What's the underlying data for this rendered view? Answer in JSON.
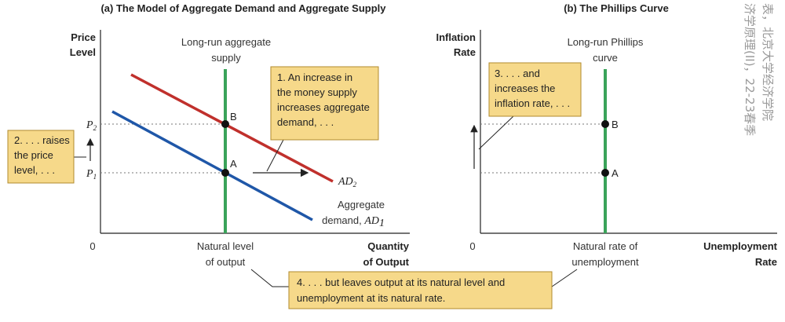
{
  "panel_a": {
    "title": "(a) The Model of Aggregate Demand and Aggregate Supply",
    "y_label_1": "Price",
    "y_label_2": "Level",
    "x_label_1": "Quantity",
    "x_label_2": "of Output",
    "origin": "0",
    "lras_label_1": "Long-run aggregate",
    "lras_label_2": "supply",
    "natural_level_1": "Natural level",
    "natural_level_2": "of output",
    "p1_main": "P",
    "p1_sub": "1",
    "p2_main": "P",
    "p2_sub": "2",
    "point_a": "A",
    "point_b": "B",
    "ad2_main": "AD",
    "ad2_sub": "2",
    "ad1_line1": "Aggregate",
    "ad1_line2_prefix": "demand, ",
    "ad1_main": "AD",
    "ad1_sub": "1",
    "colors": {
      "ad2": "#c0302c",
      "ad1": "#1f57a8",
      "long_run": "#3aa35a"
    }
  },
  "panel_b": {
    "title": "(b) The Phillips Curve",
    "y_label_1": "Inflation",
    "y_label_2": "Rate",
    "x_label_1": "Unemployment",
    "x_label_2": "Rate",
    "origin": "0",
    "lrpc_label_1": "Long-run Phillips",
    "lrpc_label_2": "curve",
    "natural_rate_1": "Natural rate of",
    "natural_rate_2": "unemployment",
    "point_a": "A",
    "point_b": "B"
  },
  "callouts": {
    "c1": [
      "1. An increase in",
      "the money supply",
      "increases aggregate",
      "demand, . . ."
    ],
    "c2": [
      "2. . . . raises",
      "the price",
      "level, . . ."
    ],
    "c3": [
      "3. . . . and",
      "increases the",
      "inflation rate, . . ."
    ],
    "c4": [
      "4. . . . but leaves output at its natural level and",
      "unemployment at its natural rate."
    ],
    "fill": "#f6d98a",
    "border": "#b08a2e"
  },
  "watermark": {
    "col1": "表，北京大学经济学院",
    "col2": "济学原理(II)，22-23春季"
  }
}
